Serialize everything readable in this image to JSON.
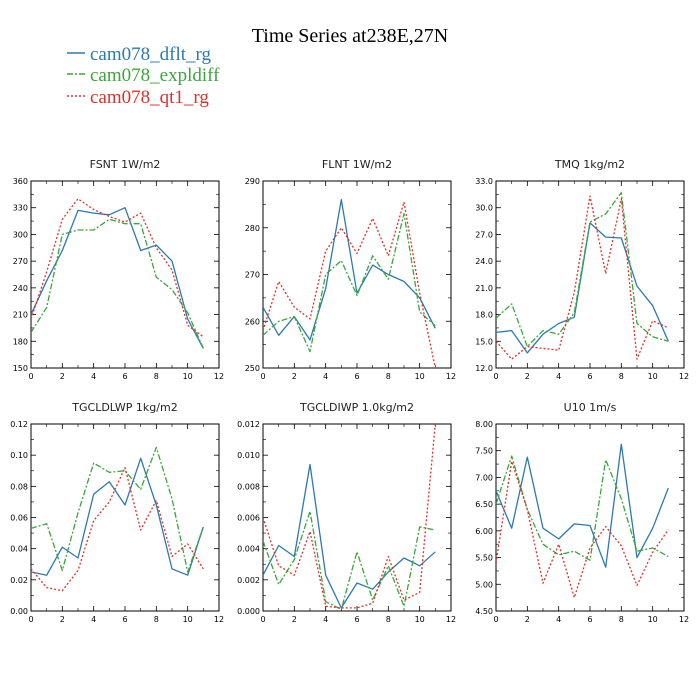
{
  "figure": {
    "title": "Time Series at238E,27N",
    "legend": [
      {
        "name": "cam078_dflt_rg",
        "color": "#2a7ab0"
      },
      {
        "name": "cam078_expldiff",
        "color": "#3aa63a"
      },
      {
        "name": "cam078_qt1_rg",
        "color": "#e0302a"
      }
    ]
  },
  "chart_data": [
    {
      "type": "line",
      "title": "FSNT   1W/m2",
      "x": [
        0,
        1,
        2,
        3,
        4,
        5,
        6,
        7,
        8,
        9,
        10,
        11
      ],
      "xlim": [
        0,
        12
      ],
      "xticks": [
        0,
        2,
        4,
        6,
        8,
        10,
        12
      ],
      "ylim": [
        150,
        360
      ],
      "yticks": [
        "150",
        "180",
        "210",
        "240",
        "270",
        "300",
        "330",
        "360"
      ],
      "series": [
        {
          "name": "cam078_dflt_rg",
          "values": [
            210,
            248,
            282,
            327,
            324,
            322,
            330,
            282,
            288,
            270,
            205,
            172
          ]
        },
        {
          "name": "cam078_expldiff",
          "values": [
            190,
            218,
            300,
            305,
            305,
            317,
            312,
            312,
            252,
            238,
            212,
            172
          ]
        },
        {
          "name": "cam078_qt1_rg",
          "values": [
            205,
            258,
            317,
            340,
            328,
            320,
            314,
            324,
            285,
            260,
            198,
            185
          ]
        }
      ]
    },
    {
      "type": "line",
      "title": "FLNT   1W/m2",
      "x": [
        0,
        1,
        2,
        3,
        4,
        5,
        6,
        7,
        8,
        9,
        10,
        11
      ],
      "xlim": [
        0,
        12
      ],
      "xticks": [
        0,
        2,
        4,
        6,
        8,
        10,
        12
      ],
      "ylim": [
        250,
        290
      ],
      "yticks": [
        "250",
        "260",
        "270",
        "280",
        "290"
      ],
      "series": [
        {
          "name": "cam078_dflt_rg",
          "values": [
            263,
            257,
            261,
            256,
            267,
            286,
            266,
            272,
            270,
            268.5,
            265,
            258.5
          ]
        },
        {
          "name": "cam078_expldiff",
          "values": [
            257,
            260,
            261,
            253.5,
            270,
            273,
            265.5,
            274,
            269,
            283,
            262,
            259
          ]
        },
        {
          "name": "cam078_qt1_rg",
          "values": [
            258,
            268.5,
            263,
            260.5,
            275,
            280,
            274.5,
            282,
            274,
            285.5,
            266,
            250
          ]
        }
      ]
    },
    {
      "type": "line",
      "title": "TMQ   1kg/m2",
      "x": [
        0,
        1,
        2,
        3,
        4,
        5,
        6,
        7,
        8,
        9,
        10,
        11
      ],
      "xlim": [
        0,
        12
      ],
      "xticks": [
        0,
        2,
        4,
        6,
        8,
        10,
        12
      ],
      "ylim": [
        12,
        33
      ],
      "yticks": [
        "12.0",
        "15.0",
        "18.0",
        "21.0",
        "24.0",
        "27.0",
        "30.0",
        "33.0"
      ],
      "series": [
        {
          "name": "cam078_dflt_rg",
          "values": [
            16,
            16.2,
            13.7,
            15.8,
            17,
            17.7,
            28.3,
            26.7,
            26.6,
            21.2,
            19,
            15
          ]
        },
        {
          "name": "cam078_expldiff",
          "values": [
            17.6,
            19.2,
            14.4,
            16.2,
            15.8,
            18.2,
            28.4,
            29.3,
            31.7,
            17,
            15.5,
            15
          ]
        },
        {
          "name": "cam078_qt1_rg",
          "values": [
            15,
            13,
            14.4,
            14.2,
            14,
            20.5,
            31.3,
            22.6,
            31,
            13,
            17.3,
            16.5
          ]
        }
      ]
    },
    {
      "type": "line",
      "title": "TGCLDLWP   1kg/m2",
      "x": [
        0,
        1,
        2,
        3,
        4,
        5,
        6,
        7,
        8,
        9,
        10,
        11
      ],
      "xlim": [
        0,
        12
      ],
      "xticks": [
        0,
        2,
        4,
        6,
        8,
        10,
        12
      ],
      "ylim": [
        0,
        0.12
      ],
      "yticks": [
        "0.00",
        "0.02",
        "0.04",
        "0.06",
        "0.08",
        "0.10",
        "0.12"
      ],
      "series": [
        {
          "name": "cam078_dflt_rg",
          "values": [
            0.025,
            0.023,
            0.041,
            0.034,
            0.075,
            0.083,
            0.068,
            0.098,
            0.068,
            0.027,
            0.023,
            0.054
          ]
        },
        {
          "name": "cam078_expldiff",
          "values": [
            0.053,
            0.056,
            0.026,
            0.063,
            0.095,
            0.089,
            0.09,
            0.078,
            0.105,
            0.072,
            0.025,
            0.054
          ]
        },
        {
          "name": "cam078_qt1_rg",
          "values": [
            0.027,
            0.015,
            0.013,
            0.026,
            0.058,
            0.07,
            0.092,
            0.052,
            0.071,
            0.035,
            0.043,
            0.027
          ]
        }
      ]
    },
    {
      "type": "line",
      "title": "TGCLDIWP   1.0kg/m2",
      "x": [
        0,
        1,
        2,
        3,
        4,
        5,
        6,
        7,
        8,
        9,
        10,
        11
      ],
      "xlim": [
        0,
        12
      ],
      "xticks": [
        0,
        2,
        4,
        6,
        8,
        10,
        12
      ],
      "ylim": [
        0,
        0.012
      ],
      "yticks": [
        "0.000",
        "0.002",
        "0.004",
        "0.006",
        "0.008",
        "0.010",
        "0.012"
      ],
      "series": [
        {
          "name": "cam078_dflt_rg",
          "values": [
            0.0023,
            0.0042,
            0.0035,
            0.0094,
            0.0023,
            0.0002,
            0.0018,
            0.0014,
            0.0025,
            0.0034,
            0.0029,
            0.0038
          ]
        },
        {
          "name": "cam078_expldiff",
          "values": [
            0.0045,
            0.0017,
            0.0033,
            0.0064,
            0.0006,
            0.0001,
            0.0038,
            0.0007,
            0.0029,
            0.0003,
            0.0054,
            0.0052
          ]
        },
        {
          "name": "cam078_qt1_rg",
          "values": [
            0.006,
            0.0029,
            0.0023,
            0.0051,
            0.0003,
            0.0002,
            0.0002,
            0.0005,
            0.0035,
            0.0007,
            0.0012,
            0.012
          ]
        }
      ]
    },
    {
      "type": "line",
      "title": "U10   1m/s",
      "x": [
        0,
        1,
        2,
        3,
        4,
        5,
        6,
        7,
        8,
        9,
        10,
        11
      ],
      "xlim": [
        0,
        12
      ],
      "xticks": [
        0,
        2,
        4,
        6,
        8,
        10,
        12
      ],
      "ylim": [
        4.5,
        8
      ],
      "yticks": [
        "4.50",
        "5.00",
        "5.50",
        "6.00",
        "6.50",
        "7.00",
        "7.50",
        "8.00"
      ],
      "series": [
        {
          "name": "cam078_dflt_rg",
          "values": [
            6.75,
            6.05,
            7.38,
            6.05,
            5.85,
            6.13,
            6.1,
            5.32,
            7.62,
            5.5,
            6.05,
            6.8
          ]
        },
        {
          "name": "cam078_expldiff",
          "values": [
            6.5,
            7.4,
            6.4,
            5.75,
            5.55,
            5.62,
            5.45,
            7.33,
            6.6,
            5.62,
            5.68,
            5.52
          ]
        },
        {
          "name": "cam078_qt1_rg",
          "values": [
            5.4,
            7.3,
            6.4,
            5.02,
            5.75,
            4.75,
            5.68,
            6.08,
            5.72,
            4.98,
            5.6,
            6.02
          ]
        }
      ]
    }
  ]
}
